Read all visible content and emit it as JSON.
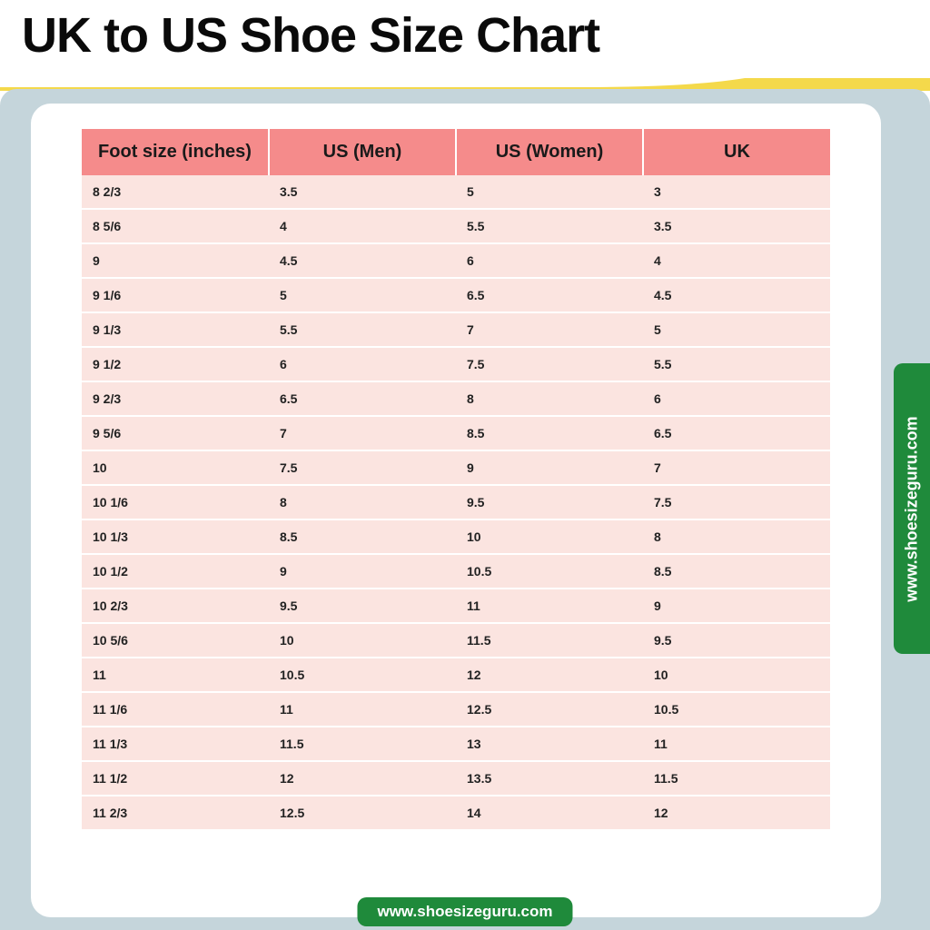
{
  "title": "UK to US Shoe Size Chart",
  "title_fontsize": 54,
  "title_color": "#0a0a0a",
  "accent_color": "#f4d94b",
  "bg_panel_color": "#c5d5db",
  "card_bg": "#ffffff",
  "side_badge": {
    "text": "www.shoesizeguru.com",
    "bg": "#1f8a3b",
    "color": "#ffffff",
    "fontsize": 18
  },
  "bottom_badge": {
    "text": "www.shoesizeguru.com",
    "bg": "#1f8a3b",
    "color": "#ffffff",
    "fontsize": 17
  },
  "table": {
    "header_bg": "#f58b8b",
    "header_color": "#1a1a1a",
    "header_fontsize": 20,
    "row_bg": "#fbe4e0",
    "row_color": "#222222",
    "row_fontsize": 14,
    "columns": [
      "Foot size (inches)",
      "US (Men)",
      "US (Women)",
      "UK"
    ],
    "rows": [
      [
        "8 2/3",
        "3.5",
        "5",
        "3"
      ],
      [
        "8 5/6",
        "4",
        "5.5",
        "3.5"
      ],
      [
        "9",
        "4.5",
        "6",
        "4"
      ],
      [
        "9 1/6",
        "5",
        "6.5",
        "4.5"
      ],
      [
        "9 1/3",
        "5.5",
        "7",
        "5"
      ],
      [
        "9 1/2",
        "6",
        "7.5",
        "5.5"
      ],
      [
        "9 2/3",
        "6.5",
        "8",
        "6"
      ],
      [
        "9 5/6",
        "7",
        "8.5",
        "6.5"
      ],
      [
        "10",
        "7.5",
        "9",
        "7"
      ],
      [
        "10 1/6",
        "8",
        "9.5",
        "7.5"
      ],
      [
        "10 1/3",
        "8.5",
        "10",
        "8"
      ],
      [
        "10 1/2",
        "9",
        "10.5",
        "8.5"
      ],
      [
        "10 2/3",
        "9.5",
        "11",
        "9"
      ],
      [
        "10 5/6",
        "10",
        "11.5",
        "9.5"
      ],
      [
        "11",
        "10.5",
        "12",
        "10"
      ],
      [
        "11 1/6",
        "11",
        "12.5",
        "10.5"
      ],
      [
        "11 1/3",
        "11.5",
        "13",
        "11"
      ],
      [
        "11 1/2",
        "12",
        "13.5",
        "11.5"
      ],
      [
        "11 2/3",
        "12.5",
        "14",
        "12"
      ]
    ]
  }
}
